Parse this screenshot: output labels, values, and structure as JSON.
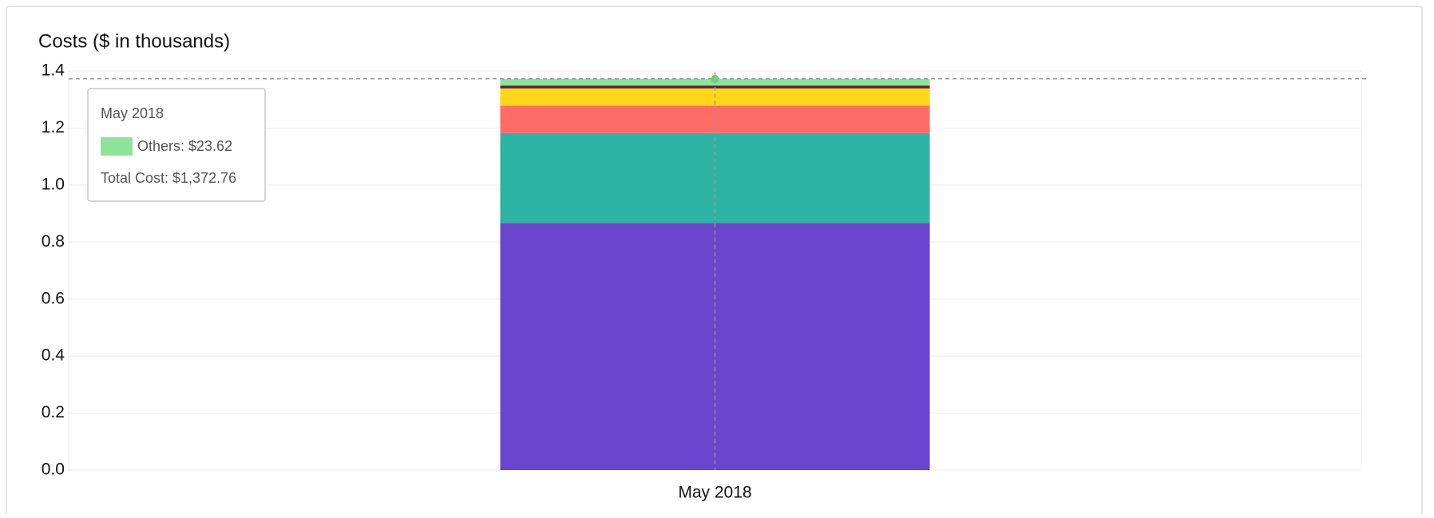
{
  "chart_data": {
    "type": "stacked_bar",
    "title": "Costs ($ in thousands)",
    "categories": [
      "May 2018"
    ],
    "series": [
      {
        "color": "#6a45cc",
        "values": [
          0.86714
        ]
      },
      {
        "color": "#2eb2a3",
        "values": [
          0.315
        ]
      },
      {
        "color": "#ff6b67",
        "values": [
          0.096
        ]
      },
      {
        "color": "#ffd619",
        "values": [
          0.061
        ]
      },
      {
        "color": "#5e1d35",
        "values": [
          0.01
        ]
      },
      {
        "color": "#8ee39b",
        "values": [
          0.02362
        ],
        "value_labels": [
          "$23.62"
        ]
      }
    ],
    "ylim": [
      0,
      1.4
    ],
    "yticks": [
      {
        "value": 0,
        "label": "0.0"
      },
      0.2,
      0.4,
      0.6,
      0.8,
      {
        "value": 1,
        "label": "1.0"
      },
      1.2,
      1.4
    ],
    "grid": true,
    "tooltip": {
      "title": "May 2018",
      "item": "Others: $23.62",
      "item_color": "#8ee39b",
      "total": "Total Cost: $1,372.76",
      "total_value": 1.37276
    }
  }
}
